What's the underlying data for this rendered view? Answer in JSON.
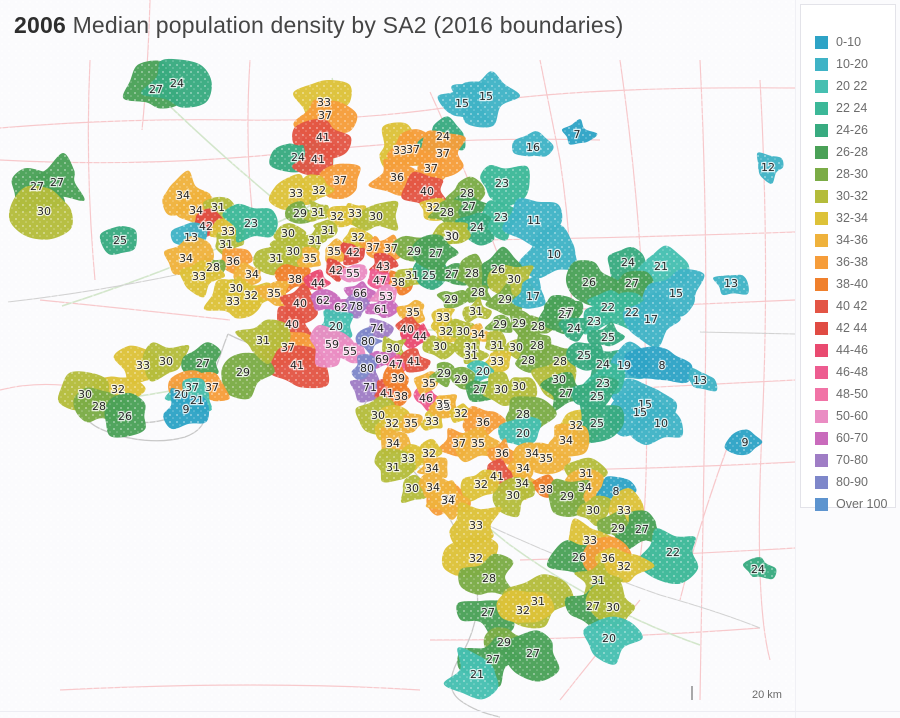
{
  "title": {
    "year": "2006",
    "text": "Median population density by SA2  (2016 boundaries)"
  },
  "legend": {
    "items": [
      {
        "label": "0-10",
        "color": "#2ea3c6"
      },
      {
        "label": "10-20",
        "color": "#3fb3c6"
      },
      {
        "label": "20 22",
        "color": "#46bfb1"
      },
      {
        "label": "22 24",
        "color": "#3cb898"
      },
      {
        "label": "24-26",
        "color": "#38ab80"
      },
      {
        "label": "26-28",
        "color": "#4aa157"
      },
      {
        "label": "28-30",
        "color": "#7bac46"
      },
      {
        "label": "30-32",
        "color": "#b4bc3b"
      },
      {
        "label": "32-34",
        "color": "#ddc238"
      },
      {
        "label": "34-36",
        "color": "#efb23c"
      },
      {
        "label": "36-38",
        "color": "#f69d3a"
      },
      {
        "label": "38-40",
        "color": "#f0802c"
      },
      {
        "label": "40 42",
        "color": "#e35545"
      },
      {
        "label": "42 44",
        "color": "#e04b43"
      },
      {
        "label": "44-46",
        "color": "#e94a70"
      },
      {
        "label": "46-48",
        "color": "#ed5c90"
      },
      {
        "label": "48-50",
        "color": "#f173a6"
      },
      {
        "label": "50-60",
        "color": "#ea8cc3"
      },
      {
        "label": "60-70",
        "color": "#c96bbc"
      },
      {
        "label": "70-80",
        "color": "#9f7dc5"
      },
      {
        "label": "80-90",
        "color": "#7e87ca"
      },
      {
        "label": "Over 100",
        "color": "#5d94cf"
      }
    ]
  },
  "scale": {
    "label": "20 km"
  },
  "map": {
    "labels": [
      [
        27,
        156,
        89
      ],
      [
        24,
        177,
        83
      ],
      [
        15,
        462,
        103
      ],
      [
        15,
        486,
        96
      ],
      [
        16,
        533,
        147
      ],
      [
        7,
        577,
        134
      ],
      [
        12,
        768,
        167
      ],
      [
        33,
        324,
        102
      ],
      [
        37,
        325,
        115
      ],
      [
        41,
        323,
        137
      ],
      [
        24,
        298,
        157
      ],
      [
        41,
        318,
        159
      ],
      [
        37,
        340,
        180
      ],
      [
        32,
        319,
        190
      ],
      [
        33,
        296,
        193
      ],
      [
        27,
        37,
        186
      ],
      [
        27,
        57,
        182
      ],
      [
        30,
        44,
        211
      ],
      [
        25,
        120,
        240
      ],
      [
        33,
        400,
        150
      ],
      [
        37,
        413,
        149
      ],
      [
        24,
        443,
        136
      ],
      [
        37,
        443,
        153
      ],
      [
        37,
        431,
        168
      ],
      [
        36,
        397,
        177
      ],
      [
        40,
        427,
        191
      ],
      [
        28,
        467,
        193
      ],
      [
        27,
        469,
        206
      ],
      [
        32,
        433,
        207
      ],
      [
        28,
        447,
        212
      ],
      [
        23,
        502,
        183
      ],
      [
        23,
        501,
        217
      ],
      [
        11,
        534,
        220
      ],
      [
        24,
        477,
        227
      ],
      [
        30,
        451,
        235
      ],
      [
        10,
        554,
        254
      ],
      [
        34,
        183,
        195
      ],
      [
        34,
        196,
        210
      ],
      [
        31,
        218,
        207
      ],
      [
        42,
        206,
        226
      ],
      [
        33,
        228,
        231
      ],
      [
        13,
        191,
        237
      ],
      [
        31,
        226,
        244
      ],
      [
        36,
        233,
        261
      ],
      [
        28,
        213,
        267
      ],
      [
        34,
        186,
        258
      ],
      [
        33,
        199,
        276
      ],
      [
        34,
        252,
        274
      ],
      [
        23,
        251,
        223
      ],
      [
        29,
        300,
        213
      ],
      [
        31,
        318,
        212
      ],
      [
        32,
        337,
        216
      ],
      [
        33,
        355,
        213
      ],
      [
        30,
        376,
        216
      ],
      [
        30,
        288,
        233
      ],
      [
        31,
        328,
        230
      ],
      [
        31,
        315,
        240
      ],
      [
        30,
        293,
        251
      ],
      [
        31,
        276,
        258
      ],
      [
        35,
        310,
        258
      ],
      [
        35,
        334,
        251
      ],
      [
        42,
        353,
        252
      ],
      [
        32,
        358,
        237
      ],
      [
        37,
        373,
        247
      ],
      [
        37,
        391,
        248
      ],
      [
        29,
        414,
        251
      ],
      [
        43,
        383,
        266
      ],
      [
        42,
        336,
        270
      ],
      [
        55,
        353,
        273
      ],
      [
        47,
        380,
        280
      ],
      [
        38,
        398,
        282
      ],
      [
        31,
        412,
        275
      ],
      [
        25,
        429,
        275
      ],
      [
        27,
        452,
        274
      ],
      [
        29,
        451,
        299
      ],
      [
        38,
        295,
        279
      ],
      [
        44,
        318,
        283
      ],
      [
        66,
        360,
        293
      ],
      [
        53,
        386,
        296
      ],
      [
        30,
        236,
        288
      ],
      [
        32,
        251,
        295
      ],
      [
        35,
        274,
        293
      ],
      [
        33,
        233,
        301
      ],
      [
        40,
        300,
        303
      ],
      [
        62,
        323,
        300
      ],
      [
        62,
        341,
        307
      ],
      [
        78,
        356,
        306
      ],
      [
        61,
        381,
        309
      ],
      [
        35,
        413,
        312
      ],
      [
        40,
        292,
        324
      ],
      [
        20,
        336,
        326
      ],
      [
        74,
        377,
        328
      ],
      [
        40,
        407,
        329
      ],
      [
        44,
        420,
        336
      ],
      [
        37,
        288,
        347
      ],
      [
        41,
        297,
        365
      ],
      [
        59,
        332,
        344
      ],
      [
        55,
        350,
        351
      ],
      [
        80,
        368,
        341
      ],
      [
        30,
        393,
        348
      ],
      [
        69,
        382,
        359
      ],
      [
        47,
        396,
        364
      ],
      [
        41,
        414,
        361
      ],
      [
        80,
        367,
        368
      ],
      [
        71,
        370,
        387
      ],
      [
        41,
        387,
        393
      ],
      [
        38,
        401,
        396
      ],
      [
        39,
        398,
        378
      ],
      [
        46,
        426,
        398
      ],
      [
        35,
        429,
        383
      ],
      [
        29,
        444,
        373
      ],
      [
        29,
        461,
        379
      ],
      [
        35,
        444,
        406
      ],
      [
        30,
        378,
        415
      ],
      [
        32,
        392,
        423
      ],
      [
        35,
        411,
        423
      ],
      [
        33,
        432,
        421
      ],
      [
        33,
        443,
        317
      ],
      [
        32,
        446,
        331
      ],
      [
        30,
        463,
        331
      ],
      [
        30,
        440,
        346
      ],
      [
        30,
        452,
        236
      ],
      [
        27,
        436,
        253
      ],
      [
        28,
        472,
        273
      ],
      [
        26,
        498,
        269
      ],
      [
        30,
        514,
        279
      ],
      [
        28,
        478,
        292
      ],
      [
        29,
        505,
        299
      ],
      [
        31,
        476,
        311
      ],
      [
        34,
        478,
        334
      ],
      [
        31,
        471,
        347
      ],
      [
        29,
        500,
        324
      ],
      [
        29,
        519,
        323
      ],
      [
        28,
        538,
        326
      ],
      [
        31,
        497,
        345
      ],
      [
        30,
        516,
        347
      ],
      [
        28,
        537,
        345
      ],
      [
        31,
        471,
        355
      ],
      [
        33,
        497,
        361
      ],
      [
        28,
        528,
        360
      ],
      [
        20,
        483,
        371
      ],
      [
        27,
        480,
        389
      ],
      [
        30,
        501,
        389
      ],
      [
        30,
        519,
        386
      ],
      [
        17,
        533,
        296
      ],
      [
        27,
        567,
        312
      ],
      [
        28,
        560,
        361
      ],
      [
        30,
        559,
        379
      ],
      [
        15,
        645,
        404
      ],
      [
        24,
        628,
        262
      ],
      [
        21,
        661,
        266
      ],
      [
        26,
        589,
        282
      ],
      [
        27,
        632,
        283
      ],
      [
        13,
        731,
        283
      ],
      [
        15,
        676,
        293
      ],
      [
        22,
        608,
        307
      ],
      [
        22,
        632,
        312
      ],
      [
        27,
        565,
        314
      ],
      [
        17,
        651,
        319
      ],
      [
        23,
        594,
        321
      ],
      [
        24,
        574,
        328
      ],
      [
        25,
        608,
        337
      ],
      [
        25,
        584,
        355
      ],
      [
        24,
        603,
        364
      ],
      [
        19,
        624,
        365
      ],
      [
        8,
        662,
        365
      ],
      [
        13,
        700,
        380
      ],
      [
        23,
        603,
        383
      ],
      [
        27,
        566,
        393
      ],
      [
        25,
        597,
        396
      ],
      [
        15,
        640,
        412
      ],
      [
        10,
        661,
        423
      ],
      [
        32,
        576,
        425
      ],
      [
        25,
        597,
        423
      ],
      [
        34,
        566,
        440
      ],
      [
        9,
        745,
        442
      ],
      [
        35,
        443,
        404
      ],
      [
        32,
        461,
        413
      ],
      [
        36,
        483,
        422
      ],
      [
        28,
        523,
        414
      ],
      [
        20,
        523,
        433
      ],
      [
        37,
        459,
        443
      ],
      [
        35,
        478,
        443
      ],
      [
        36,
        502,
        453
      ],
      [
        34,
        532,
        453
      ],
      [
        35,
        546,
        458
      ],
      [
        34,
        523,
        468
      ],
      [
        41,
        497,
        476
      ],
      [
        34,
        522,
        483
      ],
      [
        38,
        546,
        489
      ],
      [
        30,
        513,
        495
      ],
      [
        37,
        449,
        499
      ],
      [
        30,
        412,
        488
      ],
      [
        34,
        433,
        487
      ],
      [
        34,
        393,
        443
      ],
      [
        32,
        429,
        453
      ],
      [
        33,
        408,
        458
      ],
      [
        31,
        393,
        467
      ],
      [
        34,
        432,
        468
      ],
      [
        32,
        481,
        484
      ],
      [
        34,
        448,
        500
      ],
      [
        33,
        476,
        525
      ],
      [
        32,
        476,
        558
      ],
      [
        28,
        489,
        578
      ],
      [
        27,
        488,
        612
      ],
      [
        29,
        504,
        642
      ],
      [
        27,
        493,
        659
      ],
      [
        21,
        477,
        674
      ],
      [
        31,
        586,
        473
      ],
      [
        34,
        585,
        487
      ],
      [
        8,
        616,
        491
      ],
      [
        29,
        567,
        496
      ],
      [
        30,
        593,
        510
      ],
      [
        33,
        624,
        510
      ],
      [
        29,
        618,
        528
      ],
      [
        27,
        642,
        529
      ],
      [
        33,
        590,
        540
      ],
      [
        22,
        673,
        552
      ],
      [
        26,
        579,
        557
      ],
      [
        36,
        608,
        558
      ],
      [
        32,
        624,
        566
      ],
      [
        31,
        598,
        580
      ],
      [
        24,
        758,
        569
      ],
      [
        31,
        538,
        601
      ],
      [
        32,
        523,
        610
      ],
      [
        27,
        593,
        606
      ],
      [
        30,
        613,
        607
      ],
      [
        20,
        609,
        638
      ],
      [
        27,
        533,
        653
      ],
      [
        33,
        143,
        365
      ],
      [
        30,
        166,
        361
      ],
      [
        27,
        203,
        363
      ],
      [
        29,
        243,
        372
      ],
      [
        31,
        263,
        340
      ],
      [
        32,
        118,
        389
      ],
      [
        30,
        85,
        394
      ],
      [
        28,
        99,
        406
      ],
      [
        26,
        125,
        416
      ],
      [
        20,
        181,
        394
      ],
      [
        37,
        192,
        387
      ],
      [
        37,
        212,
        387
      ],
      [
        21,
        197,
        400
      ],
      [
        9,
        186,
        409
      ]
    ]
  }
}
